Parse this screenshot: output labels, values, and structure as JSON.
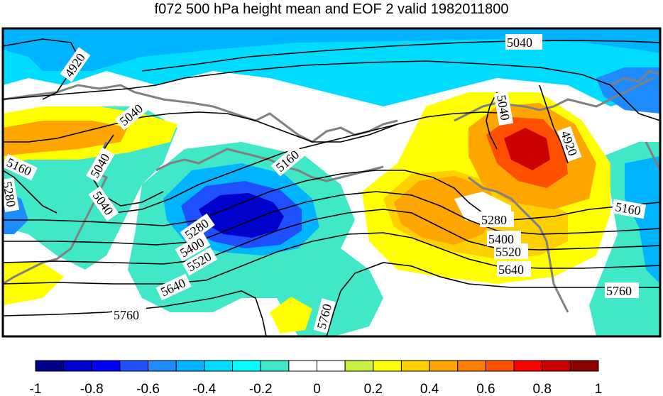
{
  "title": "f072 500 hPa height mean and EOF 2 valid 1982011800",
  "contour_labels": [
    "5040",
    "4920",
    "5040",
    "5040",
    "5160",
    "5280",
    "5040",
    "5160",
    "5040",
    "4920",
    "5280",
    "5160",
    "5400",
    "5520",
    "5640",
    "5760",
    "5280",
    "5400",
    "5520",
    "5640",
    "5760",
    "5760"
  ],
  "colorbar": {
    "tick_labels": [
      "-1",
      "-0.8",
      "-0.6",
      "-0.4",
      "-0.2",
      "0",
      "0.2",
      "0.4",
      "0.6",
      "0.8",
      "1"
    ],
    "colors": [
      "#00008b",
      "#0000cd",
      "#0000ff",
      "#1e50ff",
      "#1e8cff",
      "#00b4ff",
      "#00dcff",
      "#00ffff",
      "#40e8c8",
      "#ffffff",
      "#ffffff",
      "#c8f040",
      "#ffff00",
      "#ffd000",
      "#ffa500",
      "#ff8000",
      "#ff5000",
      "#ff0000",
      "#cd0000",
      "#8b0000"
    ]
  }
}
